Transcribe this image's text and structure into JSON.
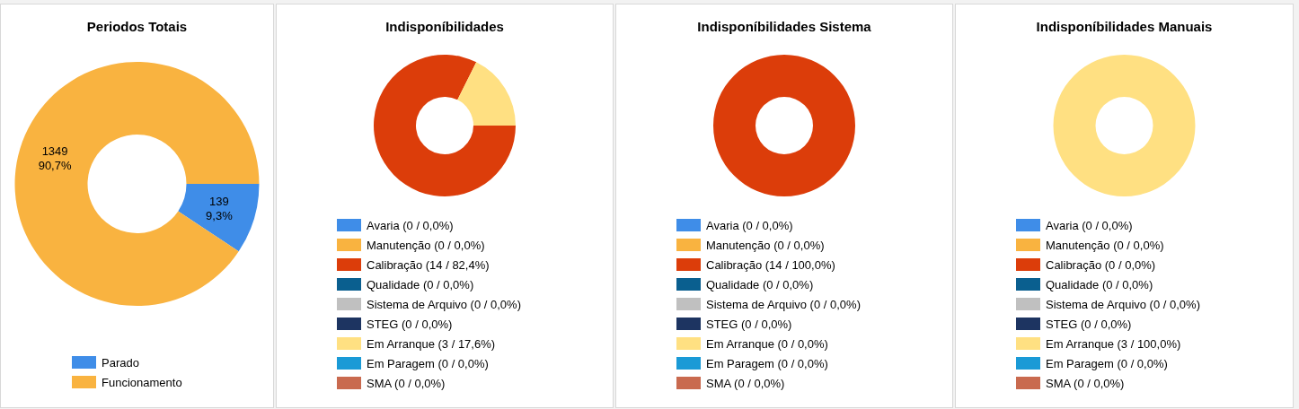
{
  "chart_data": [
    {
      "type": "donut",
      "title": "Periodos Totais",
      "categories": [
        "Parado",
        "Funcionamento"
      ],
      "values": [
        139,
        1349
      ],
      "colors": [
        "#3f8de8",
        "#f9b340"
      ],
      "value_labels": [
        "139\n9,3%",
        "1349\n90,7%"
      ],
      "legend": "bottom"
    },
    {
      "type": "donut",
      "title": "Indisponíbilidades",
      "categories": [
        "Avaria (0 / 0,0%)",
        "Manutenção (0 / 0,0%)",
        "Calibração (14 / 82,4%)",
        "Qualidade (0 / 0,0%)",
        "Sistema de Arquivo (0 / 0,0%)",
        "STEG (0 / 0,0%)",
        "Em Arranque (3 / 17,6%)",
        "Em Paragem (0 / 0,0%)",
        "SMA (0 / 0,0%)"
      ],
      "values": [
        0,
        0,
        14,
        0,
        0,
        0,
        3,
        0,
        0
      ],
      "colors": [
        "#3f8de8",
        "#f9b340",
        "#dc3d0a",
        "#0a5f8f",
        "#c0c0c0",
        "#1d3461",
        "#ffe082",
        "#1a9ad6",
        "#c96a4f"
      ],
      "legend": "bottom"
    },
    {
      "type": "donut",
      "title": "Indisponíbilidades Sistema",
      "categories": [
        "Avaria (0 / 0,0%)",
        "Manutenção (0 / 0,0%)",
        "Calibração (14 / 100,0%)",
        "Qualidade (0 / 0,0%)",
        "Sistema de Arquivo (0 / 0,0%)",
        "STEG (0 / 0,0%)",
        "Em Arranque (0 / 0,0%)",
        "Em Paragem (0 / 0,0%)",
        "SMA (0 / 0,0%)"
      ],
      "values": [
        0,
        0,
        14,
        0,
        0,
        0,
        0,
        0,
        0
      ],
      "colors": [
        "#3f8de8",
        "#f9b340",
        "#dc3d0a",
        "#0a5f8f",
        "#c0c0c0",
        "#1d3461",
        "#ffe082",
        "#1a9ad6",
        "#c96a4f"
      ],
      "legend": "bottom"
    },
    {
      "type": "donut",
      "title": "Indisponíbilidades Manuais",
      "categories": [
        "Avaria (0 / 0,0%)",
        "Manutenção (0 / 0,0%)",
        "Calibração (0 / 0,0%)",
        "Qualidade (0 / 0,0%)",
        "Sistema de Arquivo (0 / 0,0%)",
        "STEG (0 / 0,0%)",
        "Em Arranque (3 / 100,0%)",
        "Em Paragem (0 / 0,0%)",
        "SMA (0 / 0,0%)"
      ],
      "values": [
        0,
        0,
        0,
        0,
        0,
        0,
        3,
        0,
        0
      ],
      "colors": [
        "#3f8de8",
        "#f9b340",
        "#dc3d0a",
        "#0a5f8f",
        "#c0c0c0",
        "#1d3461",
        "#ffe082",
        "#1a9ad6",
        "#c96a4f"
      ],
      "legend": "bottom"
    }
  ]
}
